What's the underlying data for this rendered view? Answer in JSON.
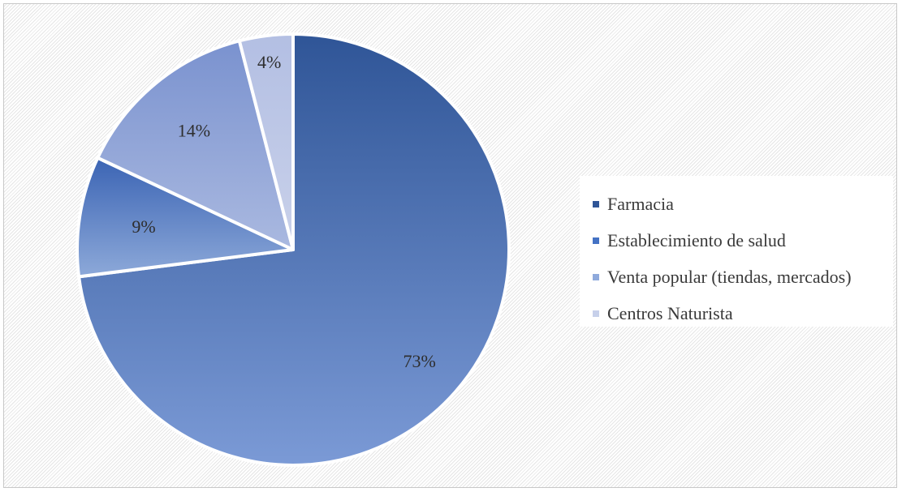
{
  "chart_data": {
    "type": "pie",
    "categories": [
      "Farmacia",
      "Establecimiento de salud",
      "Venta popular (tiendas, mercados)",
      "Centros Naturista"
    ],
    "values": [
      73,
      9,
      14,
      4
    ],
    "data_labels": [
      "73%",
      "9%",
      "14%",
      "4%"
    ],
    "colors": [
      "#3a5da3",
      "#4a73bd",
      "#8aa0d6",
      "#c4cce6"
    ],
    "legend_position": "right",
    "start_angle": "12 o'clock",
    "direction": "clockwise"
  },
  "legend": {
    "items": [
      {
        "label": "Farmacia",
        "color": "#2f5597"
      },
      {
        "label": "Establecimiento de salud",
        "color": "#4472c4"
      },
      {
        "label": "Venta popular (tiendas, mercados)",
        "color": "#8faadc"
      },
      {
        "label": "Centros Naturista",
        "color": "#c7d0ea"
      }
    ]
  }
}
